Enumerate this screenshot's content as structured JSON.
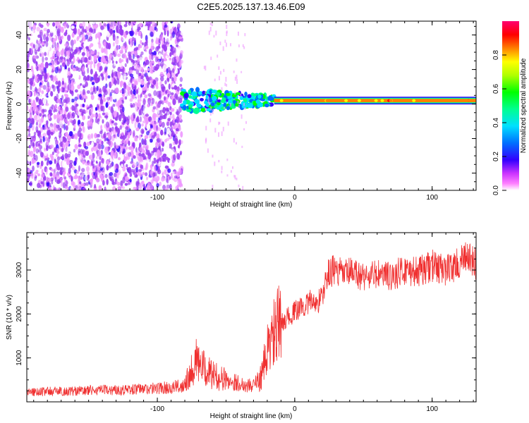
{
  "title": "C2E5.2025.137.13.46.E09",
  "colors": {
    "axis": "#000000",
    "snr_line": "#f03030",
    "background_noise": "#7b1ff0",
    "colorbar": [
      "#ff00ff",
      "#9400ff",
      "#0000ff",
      "#00b0ff",
      "#00ffb0",
      "#00ff00",
      "#ffff00",
      "#ff8000",
      "#ff0000",
      "#ff0060"
    ]
  },
  "chart_data": [
    {
      "type": "heatmap",
      "title": "C2E5.2025.137.13.46.E09",
      "xlabel": "Height of straight line (km)",
      "ylabel": "Frequency (Hz)",
      "xlim": [
        -195,
        132
      ],
      "ylim": [
        -50,
        48
      ],
      "xticks": [
        -100,
        0,
        100
      ],
      "xtick_labels": [
        "-100",
        "0",
        "100"
      ],
      "yticks": [
        -40,
        -20,
        0,
        20,
        40
      ],
      "ytick_labels": [
        "-40",
        "-20",
        "0",
        "20",
        "40"
      ],
      "colorbar": {
        "label": "Normalized spectral amplitude",
        "range": [
          0,
          1
        ],
        "ticks": [
          0.0,
          0.2,
          0.4,
          0.6,
          0.8
        ],
        "tick_labels": [
          "0.0",
          "0.2",
          "0.4",
          "0.6",
          "0.8"
        ]
      },
      "regions": [
        {
          "name": "broadband noise",
          "x": [
            -195,
            -82
          ],
          "y": [
            -50,
            48
          ],
          "amplitude": 0.15
        },
        {
          "name": "scattered band",
          "x": [
            -82,
            -15
          ],
          "y": [
            -5,
            9
          ],
          "amplitude": 0.45
        },
        {
          "name": "carrier line",
          "x": [
            -15,
            132
          ],
          "y": [
            1,
            3
          ],
          "amplitude": 0.9
        }
      ],
      "grid": false
    },
    {
      "type": "line",
      "xlabel": "Height of straight line (km)",
      "ylabel": "SNR (10 * v/v)",
      "xlim": [
        -195,
        132
      ],
      "ylim": [
        0,
        3850
      ],
      "xticks": [
        -100,
        0,
        100
      ],
      "xtick_labels": [
        "-100",
        "0",
        "100"
      ],
      "yticks": [
        1000,
        2000,
        3000
      ],
      "ytick_labels": [
        "1000",
        "2000",
        "3000"
      ],
      "series": [
        {
          "x": [
            -195,
            -180,
            -165,
            -150,
            -135,
            -120,
            -105,
            -90,
            -82,
            -76,
            -72,
            -68,
            -64,
            -60,
            -56,
            -52,
            -48,
            -44,
            -40,
            -36,
            -32,
            -28,
            -24,
            -20,
            -16,
            -12,
            -8,
            -4,
            0,
            4,
            8,
            12,
            16,
            20,
            24,
            28,
            32,
            36,
            40,
            50,
            60,
            70,
            80,
            90,
            100,
            110,
            120,
            126,
            132
          ],
          "y": [
            220,
            240,
            240,
            260,
            270,
            280,
            300,
            330,
            360,
            680,
            950,
            800,
            700,
            620,
            560,
            520,
            480,
            450,
            420,
            380,
            370,
            430,
            600,
            1150,
            1500,
            1700,
            1850,
            1950,
            2050,
            2150,
            2200,
            2300,
            2250,
            2400,
            2900,
            3000,
            2950,
            2900,
            2950,
            2850,
            2900,
            2850,
            3000,
            2950,
            3100,
            3000,
            3150,
            3300,
            3100
          ]
        }
      ],
      "grid": false
    }
  ]
}
